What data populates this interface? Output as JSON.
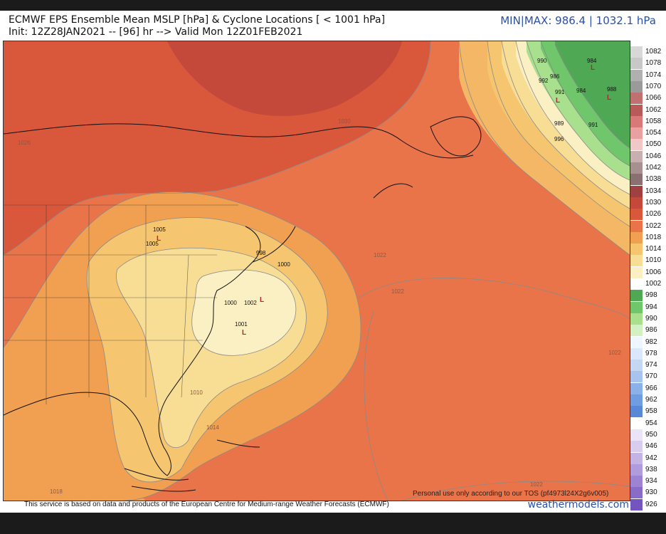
{
  "header": {
    "title": "ECMWF EPS Ensemble Mean MSLP [hPa] & Cyclone Locations [ < 1001 hPa]",
    "subtitle": "Init: 12Z28JAN2021 -- [96] hr --> Valid Mon 12Z01FEB2021",
    "minmax": "MIN|MAX: 986.4 | 1032.1 hPa"
  },
  "map": {
    "contour_labels": [
      "1026",
      "1030",
      "1022",
      "1022",
      "1022",
      "1010",
      "1014",
      "1022",
      "1018"
    ],
    "cyclones": [
      "1005",
      "1005",
      "998",
      "1000",
      "1000",
      "1002",
      "1001",
      "990",
      "986",
      "992",
      "991",
      "984",
      "984",
      "988",
      "989",
      "991",
      "996"
    ]
  },
  "legend": {
    "levels": [
      {
        "label": "1082",
        "color": "#d8d8d8"
      },
      {
        "label": "1078",
        "color": "#c8c8c8"
      },
      {
        "label": "1074",
        "color": "#b0b0b0"
      },
      {
        "label": "1070",
        "color": "#9a9a9a"
      },
      {
        "label": "1066",
        "color": "#c07070"
      },
      {
        "label": "1062",
        "color": "#b85a5a"
      },
      {
        "label": "1058",
        "color": "#d87878"
      },
      {
        "label": "1054",
        "color": "#e8a0a0"
      },
      {
        "label": "1050",
        "color": "#f0c8c8"
      },
      {
        "label": "1046",
        "color": "#c8b0b0"
      },
      {
        "label": "1042",
        "color": "#a89090"
      },
      {
        "label": "1038",
        "color": "#8a7070"
      },
      {
        "label": "1034",
        "color": "#a04040"
      },
      {
        "label": "1030",
        "color": "#c4493a"
      },
      {
        "label": "1026",
        "color": "#d9573b"
      },
      {
        "label": "1022",
        "color": "#e9744a"
      },
      {
        "label": "1018",
        "color": "#f0a050"
      },
      {
        "label": "1014",
        "color": "#f6c56f"
      },
      {
        "label": "1010",
        "color": "#f8dd95"
      },
      {
        "label": "1006",
        "color": "#fbf0c4"
      },
      {
        "label": "1002",
        "color": "#ffffff"
      },
      {
        "label": "998",
        "color": "#4fa853"
      },
      {
        "label": "994",
        "color": "#6fc66b"
      },
      {
        "label": "990",
        "color": "#a8e08e"
      },
      {
        "label": "986",
        "color": "#d2f0c4"
      },
      {
        "label": "982",
        "color": "#eef6ff"
      },
      {
        "label": "978",
        "color": "#dbe8fb"
      },
      {
        "label": "974",
        "color": "#c4d8f4"
      },
      {
        "label": "970",
        "color": "#a8c4ee"
      },
      {
        "label": "966",
        "color": "#8cb0e8"
      },
      {
        "label": "962",
        "color": "#709ce0"
      },
      {
        "label": "958",
        "color": "#5888d6"
      },
      {
        "label": "954",
        "color": "#ffffff"
      },
      {
        "label": "950",
        "color": "#eae4f6"
      },
      {
        "label": "946",
        "color": "#d8ccef"
      },
      {
        "label": "942",
        "color": "#c4b4e6"
      },
      {
        "label": "938",
        "color": "#b09cdc"
      },
      {
        "label": "934",
        "color": "#9c84d2"
      },
      {
        "label": "930",
        "color": "#886cc8"
      },
      {
        "label": "926",
        "color": "#7454be"
      }
    ]
  },
  "footer": {
    "attribution": "This service is based on data and products of the European Centre for Medium-range Weather Forecasts (ECMWF)",
    "brand": "weathermodels.com",
    "tos": "Personal use only according to our TOS (pf4973l24X2g6v005)"
  }
}
